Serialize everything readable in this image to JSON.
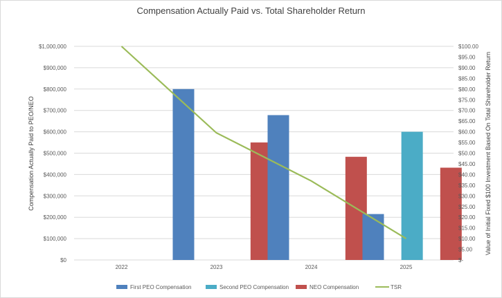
{
  "chart_data": {
    "type": "bar",
    "title": "Compensation Actually Paid vs. Total Shareholder Return",
    "categories": [
      "2022",
      "2023",
      "2024",
      "2025"
    ],
    "ylabel_left": "Compensation Actually Paid to PEO/NEO",
    "ylabel_right": "Value of Initial Fixed $100 Investment Based On Total Shareholder Return",
    "ylim_left": [
      0,
      1000000
    ],
    "ylim_right": [
      0,
      100
    ],
    "left_ticks": [
      "$0",
      "$100,000",
      "$200,000",
      "$300,000",
      "$400,000",
      "$500,000",
      "$600,000",
      "$700,000",
      "$800,000",
      "$900,000",
      "$1,000,000"
    ],
    "right_ticks": [
      "$-",
      "$5.00",
      "$10.00",
      "$15.00",
      "$20.00",
      "$25.00",
      "$30.00",
      "$35.00",
      "$40.00",
      "$45.00",
      "$50.00",
      "$55.00",
      "$60.00",
      "$65.00",
      "$70.00",
      "$75.00",
      "$80.00",
      "$85.00",
      "$90.00",
      "$95.00",
      "$100.00"
    ],
    "series": [
      {
        "name": "First PEO Compensation",
        "type": "bar",
        "color": "#4f81bd",
        "values": [
          null,
          800000,
          678000,
          215000
        ]
      },
      {
        "name": "Second PEO Compensation",
        "type": "bar",
        "color": "#4bacc6",
        "values": [
          null,
          null,
          null,
          600000
        ]
      },
      {
        "name": "NEO Compensation",
        "type": "bar",
        "color": "#c0504d",
        "values": [
          null,
          550000,
          483000,
          432000
        ]
      },
      {
        "name": "TSR",
        "type": "line",
        "axis": "right",
        "color": "#9bbb59",
        "values": [
          100,
          59.5,
          37,
          10
        ]
      }
    ],
    "grid": true,
    "legend_position": "bottom"
  }
}
